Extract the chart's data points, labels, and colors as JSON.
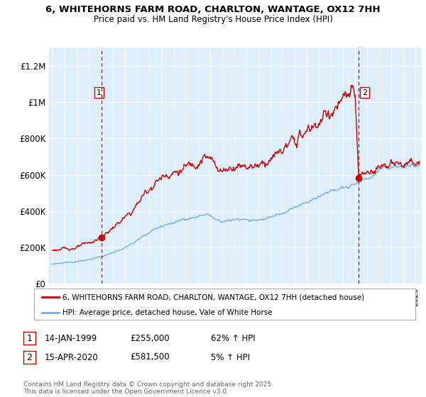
{
  "title": "6, WHITEHORNS FARM ROAD, CHARLTON, WANTAGE, OX12 7HH",
  "subtitle": "Price paid vs. HM Land Registry's House Price Index (HPI)",
  "ylim": [
    0,
    1300000
  ],
  "xlim_start": 1994.7,
  "xlim_end": 2025.5,
  "yticks": [
    0,
    200000,
    400000,
    600000,
    800000,
    1000000,
    1200000
  ],
  "ytick_labels": [
    "£0",
    "£200K",
    "£400K",
    "£600K",
    "£800K",
    "£1M",
    "£1.2M"
  ],
  "background_color": "#ffffff",
  "plot_bg_color": "#ddeeff",
  "grid_color": "#ffffff",
  "red_line_color": "#cc0000",
  "blue_line_color": "#7aadd4",
  "sale1_year": 1999.04,
  "sale1_price": 255000,
  "sale2_year": 2020.29,
  "sale2_price": 581500,
  "sale1_date": "14-JAN-1999",
  "sale1_amount": "£255,000",
  "sale1_hpi": "62% ↑ HPI",
  "sale2_date": "15-APR-2020",
  "sale2_amount": "£581,500",
  "sale2_hpi": "5% ↑ HPI",
  "legend_label_red": "6, WHITEHORNS FARM ROAD, CHARLTON, WANTAGE, OX12 7HH (detached house)",
  "legend_label_blue": "HPI: Average price, detached house, Vale of White Horse",
  "footer": "Contains HM Land Registry data © Crown copyright and database right 2025.\nThis data is licensed under the Open Government Licence v3.0."
}
